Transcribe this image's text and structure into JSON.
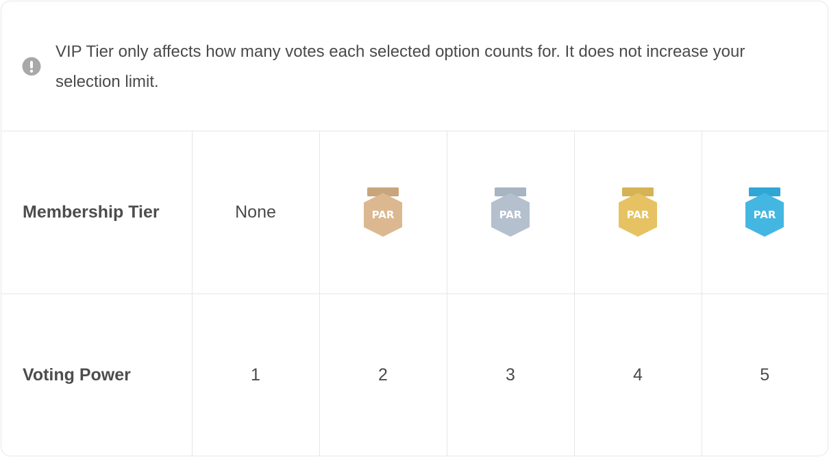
{
  "notice": {
    "icon": "exclamation-circle-icon",
    "text": "VIP Tier only affects how many votes each selected option counts for. It does not increase your selection limit."
  },
  "table": {
    "membership_label": "Membership Tier",
    "voting_label": "Voting Power",
    "none_label": "None",
    "badge_text": "PAR",
    "tiers": [
      {
        "badge": null,
        "voting_power": "1"
      },
      {
        "badge": {
          "icon": "bronze-badge-icon",
          "top": "#c9a57c",
          "body": "#dcb890"
        },
        "voting_power": "2"
      },
      {
        "badge": {
          "icon": "silver-badge-icon",
          "top": "#a7b4c2",
          "body": "#b4c0ce"
        },
        "voting_power": "3"
      },
      {
        "badge": {
          "icon": "gold-badge-icon",
          "top": "#d6b257",
          "body": "#e6c262"
        },
        "voting_power": "4"
      },
      {
        "badge": {
          "icon": "diamond-badge-icon",
          "top": "#2fa6d6",
          "body": "#44b6e2"
        },
        "voting_power": "5"
      }
    ]
  },
  "colors": {
    "border": "#e6e6e6",
    "text": "#4a4a4a",
    "notice_icon": "#a8a8a8"
  }
}
